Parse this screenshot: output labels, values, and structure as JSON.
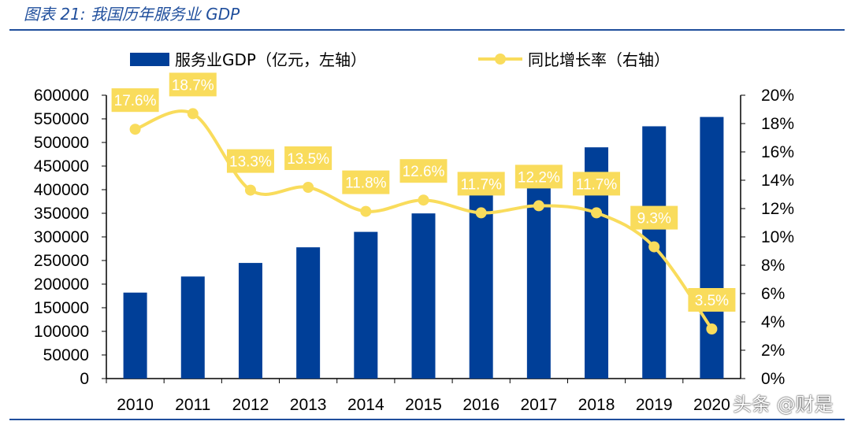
{
  "title": "图表 21:  我国历年服务业 GDP",
  "watermark": "头条 @财是",
  "chart_data": {
    "type": "bar+line",
    "categories": [
      "2010",
      "2011",
      "2012",
      "2013",
      "2014",
      "2015",
      "2016",
      "2017",
      "2018",
      "2019",
      "2020"
    ],
    "series": [
      {
        "name": "服务业GDP（亿元，左轴）",
        "type": "bar",
        "axis": "left",
        "color": "#003f98",
        "values": [
          182058,
          216120,
          244852,
          277983,
          310654,
          349745,
          390828,
          438356,
          489701,
          534233,
          553977
        ]
      },
      {
        "name": "同比增长率（右轴）",
        "type": "line",
        "axis": "right",
        "color": "#f9dc5c",
        "values": [
          17.6,
          18.7,
          13.3,
          13.5,
          11.8,
          12.6,
          11.7,
          12.2,
          11.7,
          9.3,
          3.5
        ],
        "labels": [
          "17.6%",
          "18.7%",
          "13.3%",
          "13.5%",
          "11.8%",
          "12.6%",
          "11.7%",
          "12.2%",
          "11.7%",
          "9.3%",
          "3.5%"
        ]
      }
    ],
    "y_left": {
      "range": [
        0,
        600000
      ],
      "ticks": [
        "0",
        "50000",
        "100000",
        "150000",
        "200000",
        "250000",
        "300000",
        "350000",
        "400000",
        "450000",
        "500000",
        "550000",
        "600000"
      ]
    },
    "y_right": {
      "range": [
        0,
        20
      ],
      "ticks": [
        "0%",
        "2%",
        "4%",
        "6%",
        "8%",
        "10%",
        "12%",
        "14%",
        "16%",
        "18%",
        "20%"
      ]
    },
    "legend_placement": "top",
    "grid": false
  }
}
